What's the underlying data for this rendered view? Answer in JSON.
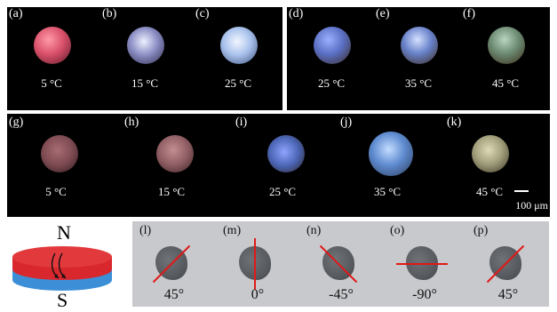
{
  "top_left": {
    "cells": [
      {
        "label": "(a)",
        "temp": "5 °C",
        "color": "#d9506a"
      },
      {
        "label": "(b)",
        "temp": "15 °C",
        "color": "#8b8ec4"
      },
      {
        "label": "(c)",
        "temp": "25 °C",
        "color": "#a9c2ec"
      }
    ]
  },
  "top_right": {
    "cells": [
      {
        "label": "(d)",
        "temp": "25 °C",
        "color": "#5a6fc4"
      },
      {
        "label": "(e)",
        "temp": "35 °C",
        "color": "#6781c9"
      },
      {
        "label": "(f)",
        "temp": "45 °C",
        "color": "#6c8a72"
      }
    ]
  },
  "middle": {
    "cells": [
      {
        "label": "(g)",
        "temp": "5 °C",
        "color": "#7d4a52"
      },
      {
        "label": "(h)",
        "temp": "15 °C",
        "color": "#8d5c62"
      },
      {
        "label": "(i)",
        "temp": "25 °C",
        "color": "#4b64b3"
      },
      {
        "label": "(j)",
        "temp": "35 °C",
        "color": "#5e8bd0"
      },
      {
        "label": "(k)",
        "temp": "45 °C",
        "color": "#a3a07d"
      }
    ],
    "scale_bar": "100 μm"
  },
  "bottom": {
    "magnet": {
      "north": "N",
      "south": "S",
      "top_color": "#d8272d",
      "bottom_color": "#3c8fd6"
    },
    "cells": [
      {
        "label": "(l)",
        "angle": "45°",
        "rotation": -45
      },
      {
        "label": "(m)",
        "angle": "0°",
        "rotation": 90
      },
      {
        "label": "(n)",
        "angle": "-45°",
        "rotation": 45
      },
      {
        "label": "(o)",
        "angle": "-90°",
        "rotation": 0
      },
      {
        "label": "(p)",
        "angle": "45°",
        "rotation": -45
      }
    ]
  }
}
